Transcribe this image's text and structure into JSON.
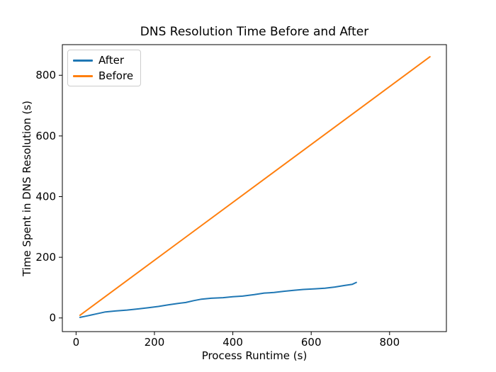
{
  "chart_data": {
    "type": "line",
    "title": "DNS Resolution Time Before and After",
    "xlabel": "Process Runtime (s)",
    "ylabel": "Time Spent in DNS Resolution (s)",
    "xlim": [
      -35,
      945
    ],
    "ylim": [
      -45,
      901
    ],
    "xticks": [
      0,
      200,
      400,
      600,
      800
    ],
    "yticks": [
      0,
      200,
      400,
      600,
      800
    ],
    "grid": false,
    "legend": {
      "position": "upper-left",
      "entries": [
        "After",
        "Before"
      ]
    },
    "axis_color": "#000000",
    "background": "#ffffff",
    "series": [
      {
        "name": "After",
        "color": "#1f77b4",
        "points": [
          [
            10,
            2
          ],
          [
            25,
            6
          ],
          [
            50,
            13
          ],
          [
            75,
            20
          ],
          [
            100,
            23
          ],
          [
            130,
            26
          ],
          [
            160,
            30
          ],
          [
            185,
            34
          ],
          [
            210,
            38
          ],
          [
            235,
            43
          ],
          [
            260,
            48
          ],
          [
            280,
            51
          ],
          [
            300,
            57
          ],
          [
            320,
            62
          ],
          [
            345,
            65
          ],
          [
            375,
            67
          ],
          [
            400,
            70
          ],
          [
            425,
            72
          ],
          [
            455,
            77
          ],
          [
            480,
            82
          ],
          [
            505,
            84
          ],
          [
            530,
            88
          ],
          [
            555,
            91
          ],
          [
            580,
            94
          ],
          [
            610,
            96
          ],
          [
            635,
            98
          ],
          [
            660,
            102
          ],
          [
            685,
            107
          ],
          [
            705,
            111
          ],
          [
            715,
            117
          ]
        ]
      },
      {
        "name": "Before",
        "color": "#ff7f0e",
        "points": [
          [
            10,
            9
          ],
          [
            903,
            861
          ]
        ]
      }
    ]
  }
}
